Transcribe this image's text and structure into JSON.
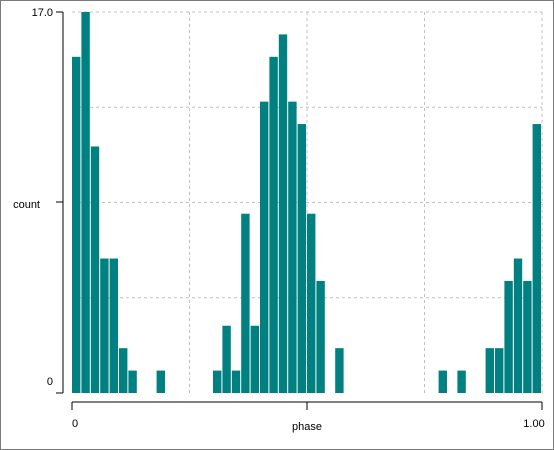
{
  "chart_data": {
    "type": "bar",
    "xlabel": "phase",
    "ylabel": "count",
    "x_ticks": [
      "0",
      "1.00"
    ],
    "y_ticks": [
      "0",
      "17.0"
    ],
    "xlim": [
      0,
      1
    ],
    "ylim": [
      0,
      17
    ],
    "grid": true,
    "bar_color": "#008080",
    "bin_width": 0.02,
    "x": [
      0.0,
      0.02,
      0.04,
      0.06,
      0.08,
      0.1,
      0.12,
      0.14,
      0.16,
      0.18,
      0.2,
      0.22,
      0.24,
      0.26,
      0.28,
      0.3,
      0.32,
      0.34,
      0.36,
      0.38,
      0.4,
      0.42,
      0.44,
      0.46,
      0.48,
      0.5,
      0.52,
      0.54,
      0.56,
      0.58,
      0.6,
      0.62,
      0.64,
      0.66,
      0.68,
      0.7,
      0.72,
      0.74,
      0.76,
      0.78,
      0.8,
      0.82,
      0.84,
      0.86,
      0.88,
      0.9,
      0.92,
      0.94,
      0.96,
      0.98
    ],
    "values": [
      15,
      17,
      11,
      6,
      6,
      2,
      1,
      0,
      0,
      1,
      0,
      0,
      0,
      0,
      0,
      1,
      3,
      1,
      8,
      3,
      13,
      15,
      16,
      13,
      12,
      8,
      5,
      0,
      2,
      0,
      0,
      0,
      0,
      0,
      0,
      0,
      0,
      0,
      0,
      1,
      0,
      1,
      0,
      0,
      2,
      2,
      5,
      6,
      5,
      12
    ]
  }
}
